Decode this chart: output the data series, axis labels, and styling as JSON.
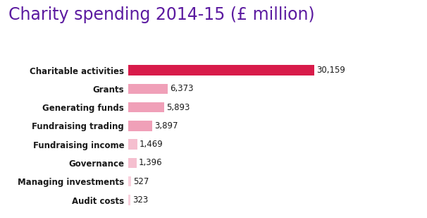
{
  "title": "Charity spending 2014-15 (£ million)",
  "title_color": "#5b1aa0",
  "title_fontsize": 17,
  "categories": [
    "Charitable activities",
    "Grants",
    "Generating funds",
    "Fundraising trading",
    "Fundraising income",
    "Governance",
    "Managing investments",
    "Audit costs"
  ],
  "values": [
    30159,
    6373,
    5893,
    3897,
    1469,
    1396,
    527,
    323
  ],
  "bar_colors": [
    "#d81b4a",
    "#f0a0b8",
    "#f0a0b8",
    "#f0a0b8",
    "#f5bfcf",
    "#f5bfcf",
    "#f8d0dc",
    "#f8d0dc"
  ],
  "label_color": "#1a1a1a",
  "value_label_color": "#1a1a1a",
  "label_fontsize": 8.5,
  "category_fontsize": 8.5,
  "category_fontweight": "bold",
  "value_labels": [
    "30,159",
    "6,373",
    "5,893",
    "3,897",
    "1,469",
    "1,396",
    "527",
    "323"
  ],
  "background_color": "#ffffff",
  "xlim": [
    0,
    38000
  ],
  "bar_height": 0.55
}
